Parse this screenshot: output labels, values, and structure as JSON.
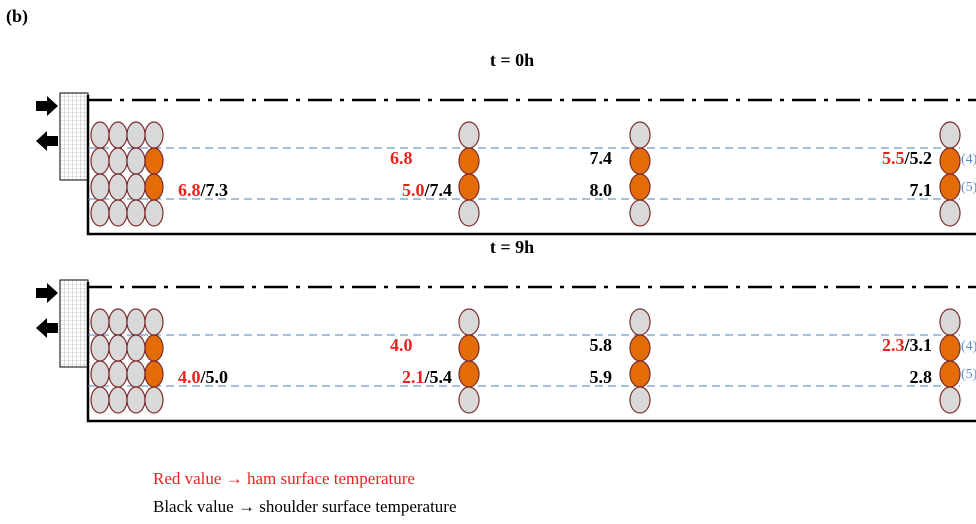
{
  "figure_label": "(b)",
  "panels": [
    {
      "title": "t = 0h",
      "markers": [
        "(4)",
        "(5)"
      ],
      "groups": [
        {
          "lower": {
            "red": "6.8",
            "separator": "/",
            "black": "7.3"
          }
        },
        {
          "upper": {
            "red": "6.8"
          },
          "lower": {
            "red": "5.0",
            "separator": "/",
            "black": "7.4"
          }
        },
        {
          "upper": {
            "black": "7.4"
          },
          "lower": {
            "black": "8.0"
          }
        },
        {
          "upper": {
            "red": "5.5",
            "separator": "/",
            "black": "5.2"
          },
          "lower": {
            "black": "7.1"
          }
        }
      ]
    },
    {
      "title": "t = 9h",
      "markers": [
        "(4)",
        "(5)"
      ],
      "groups": [
        {
          "lower": {
            "red": "4.0",
            "separator": "/",
            "black": "5.0"
          }
        },
        {
          "upper": {
            "red": "4.0"
          },
          "lower": {
            "red": "2.1",
            "separator": "/",
            "black": "5.4"
          }
        },
        {
          "upper": {
            "black": "5.8"
          },
          "lower": {
            "black": "5.9"
          }
        },
        {
          "upper": {
            "red": "2.3",
            "separator": "/",
            "black": "3.1"
          },
          "lower": {
            "black": "2.8"
          }
        }
      ]
    }
  ],
  "legend": [
    "Red value → ham surface temperature",
    "Black value → shoulder surface temperature"
  ]
}
